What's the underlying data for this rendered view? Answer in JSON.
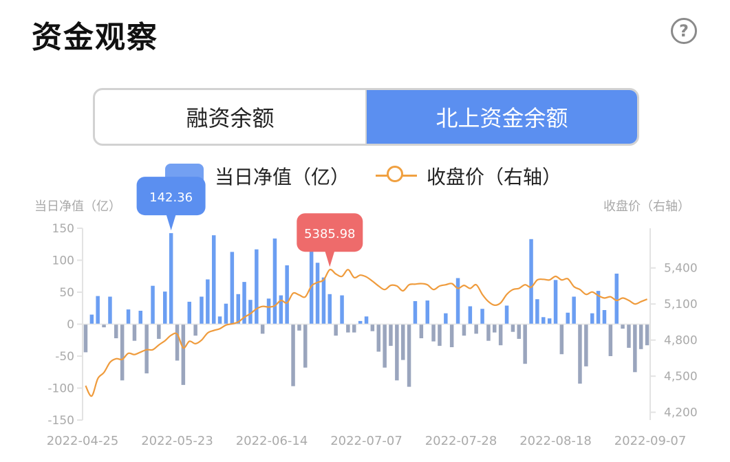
{
  "header": {
    "title": "资金观察",
    "help_label": "?"
  },
  "tabs": [
    {
      "label": "融资余额",
      "active": false
    },
    {
      "label": "北上资金余额",
      "active": true
    }
  ],
  "legend": {
    "bar_label": "当日净值（亿）",
    "line_label": "收盘价（右轴）"
  },
  "colors": {
    "positive_bar": "#6b9ef2",
    "negative_bar": "#9aa5bd",
    "line": "#ef9b3c",
    "max_bar_tip": "#5b8ff0",
    "max_line_tip": "#ee6b6b"
  },
  "chart_data": {
    "type": "bar+line",
    "y_left_label": "当日净值（亿）",
    "y_right_label": "收盘价（右轴）",
    "y_left_ticks": [
      150,
      100,
      50,
      0,
      -50,
      -100,
      -150
    ],
    "y_left_ticks_text": [
      "150",
      "100",
      "50",
      "0",
      "-50",
      "-100",
      "-150"
    ],
    "y_left_range": [
      -150,
      150
    ],
    "y_right_ticks": [
      5400,
      5100,
      4800,
      4500,
      4200
    ],
    "y_right_ticks_text": [
      "5,400",
      "5,100",
      "4,800",
      "4,500",
      "4,200"
    ],
    "y_right_range": [
      4135,
      5730
    ],
    "x_labels": [
      "2022-04-25",
      "2022-05-23",
      "2022-06-14",
      "2022-07-07",
      "2022-07-28",
      "2022-08-18",
      "2022-09-07"
    ],
    "net_values": [
      -44,
      15,
      44,
      -5,
      43,
      -22,
      -88,
      23,
      -26,
      21,
      -77,
      60,
      -23,
      51,
      142.36,
      -57,
      -95,
      35,
      -18,
      43,
      70,
      139,
      12,
      32,
      113,
      47,
      66,
      38,
      117,
      -15,
      40,
      134,
      45,
      92,
      -97,
      -10,
      -68,
      121,
      96,
      73,
      47,
      -18,
      45,
      -13,
      -13,
      5,
      12,
      -11,
      -43,
      -68,
      -34,
      -88,
      -56,
      -98,
      36,
      -22,
      37,
      -27,
      -34,
      17,
      -36,
      72,
      -18,
      28,
      -15,
      24,
      -26,
      -13,
      -33,
      29,
      -12,
      -23,
      -62,
      133,
      39,
      11,
      9,
      69,
      -47,
      18,
      43,
      -93,
      -66,
      17,
      52,
      22,
      -50,
      79,
      -7,
      -37,
      -75,
      -39,
      -33
    ],
    "close_prices": [
      4420,
      4335,
      4480,
      4530,
      4615,
      4645,
      4640,
      4690,
      4680,
      4700,
      4720,
      4720,
      4760,
      4795,
      4840,
      4850,
      4735,
      4790,
      4770,
      4800,
      4860,
      4880,
      4895,
      4925,
      4935,
      4950,
      4990,
      5020,
      5060,
      5080,
      5075,
      5085,
      5130,
      5110,
      5190,
      5175,
      5160,
      5250,
      5280,
      5300,
      5385.98,
      5350,
      5330,
      5385.98,
      5320,
      5340,
      5325,
      5290,
      5250,
      5220,
      5255,
      5250,
      5210,
      5260,
      5265,
      5270,
      5260,
      5220,
      5250,
      5260,
      5270,
      5230,
      5255,
      5230,
      5260,
      5180,
      5120,
      5090,
      5110,
      5180,
      5220,
      5230,
      5260,
      5240,
      5300,
      5305,
      5300,
      5330,
      5300,
      5310,
      5245,
      5220,
      5180,
      5200,
      5170,
      5150,
      5160,
      5130,
      5150,
      5130,
      5100,
      5120,
      5140
    ],
    "max_net_value": "142.36",
    "max_close_price": "5385.98"
  }
}
